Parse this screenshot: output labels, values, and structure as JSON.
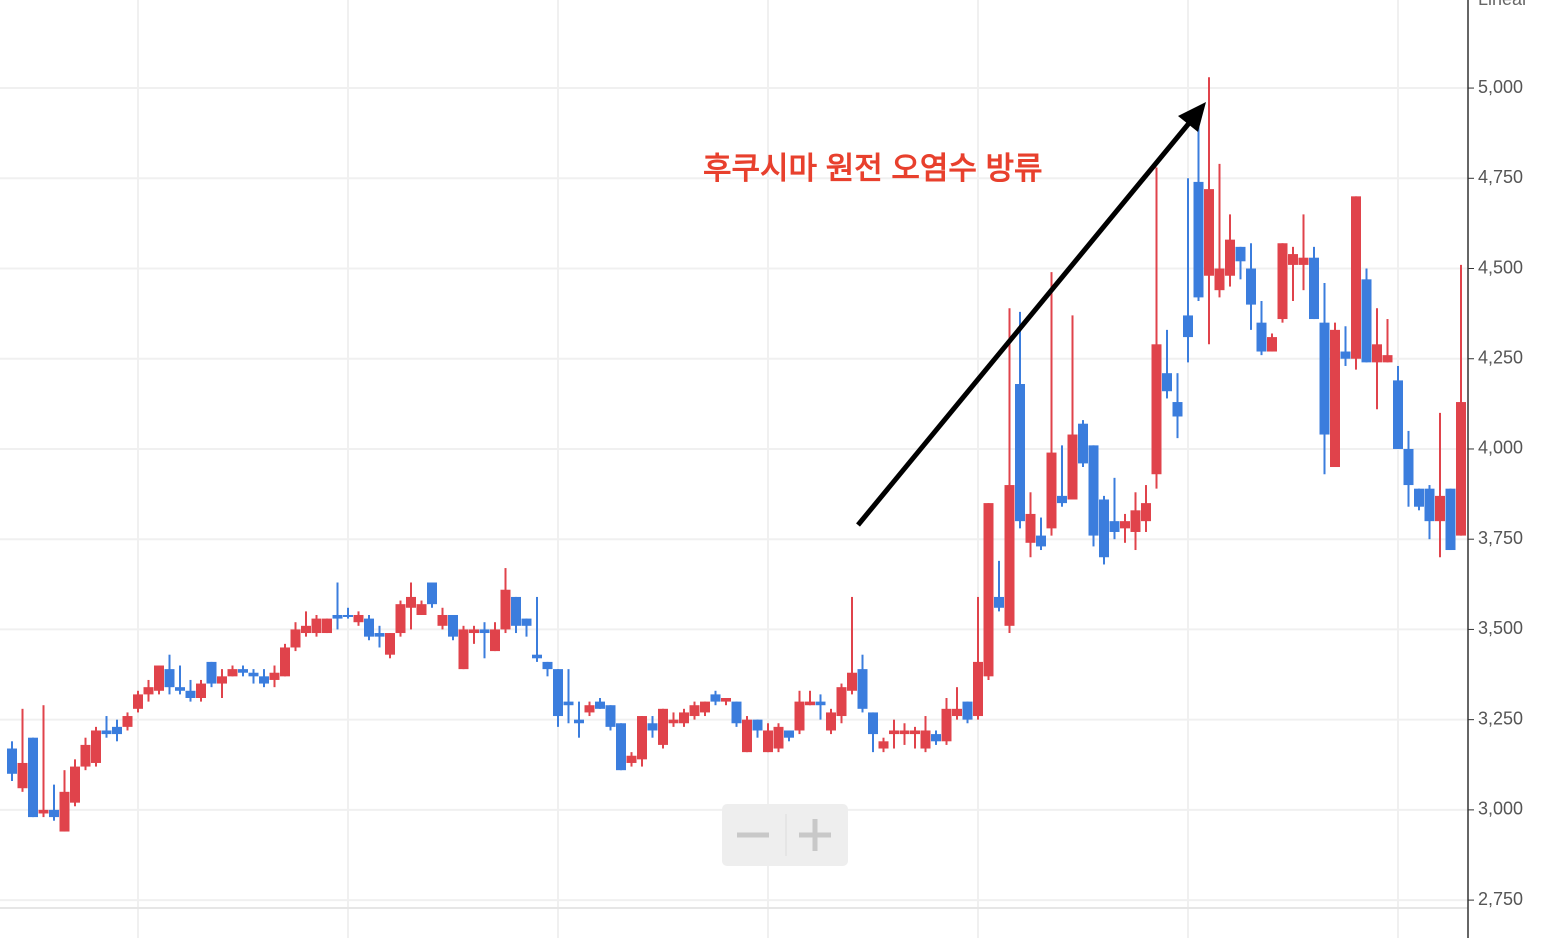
{
  "chart_data": {
    "type": "candlestick",
    "annotation": "후쿠시마 원전 오염수 방류",
    "scale": "Linear",
    "up_color": "#e0434b",
    "down_color": "#3b7ddd",
    "annotation_color": "#e8402d",
    "grid": true,
    "ylim": [
      2645,
      5244
    ],
    "yticks": [
      {
        "value": 2750,
        "label": "2,750"
      },
      {
        "value": 3000,
        "label": "3,000"
      },
      {
        "value": 3250,
        "label": "3,250"
      },
      {
        "value": 3500,
        "label": "3,500"
      },
      {
        "value": 3750,
        "label": "3,750"
      },
      {
        "value": 4000,
        "label": "4,000"
      },
      {
        "value": 4250,
        "label": "4,250"
      },
      {
        "value": 4500,
        "label": "4,500"
      },
      {
        "value": 4750,
        "label": "4,750"
      },
      {
        "value": 5000,
        "label": "5,000"
      }
    ],
    "candles": [
      {
        "open": 3170,
        "high": 3190,
        "low": 3080,
        "close": 3100
      },
      {
        "open": 3060,
        "high": 3280,
        "low": 3050,
        "close": 3130
      },
      {
        "open": 3200,
        "high": 3200,
        "low": 2980,
        "close": 2980
      },
      {
        "open": 2990,
        "high": 3290,
        "low": 2980,
        "close": 3000
      },
      {
        "open": 3000,
        "high": 3070,
        "low": 2970,
        "close": 2980
      },
      {
        "open": 2940,
        "high": 3110,
        "low": 2940,
        "close": 3050
      },
      {
        "open": 3020,
        "high": 3140,
        "low": 3010,
        "close": 3120
      },
      {
        "open": 3120,
        "high": 3200,
        "low": 3110,
        "close": 3180
      },
      {
        "open": 3130,
        "high": 3230,
        "low": 3120,
        "close": 3220
      },
      {
        "open": 3220,
        "high": 3260,
        "low": 3200,
        "close": 3210
      },
      {
        "open": 3230,
        "high": 3250,
        "low": 3190,
        "close": 3210
      },
      {
        "open": 3230,
        "high": 3270,
        "low": 3220,
        "close": 3260
      },
      {
        "open": 3280,
        "high": 3330,
        "low": 3270,
        "close": 3320
      },
      {
        "open": 3320,
        "high": 3360,
        "low": 3300,
        "close": 3340
      },
      {
        "open": 3330,
        "high": 3400,
        "low": 3320,
        "close": 3400
      },
      {
        "open": 3390,
        "high": 3430,
        "low": 3320,
        "close": 3340
      },
      {
        "open": 3340,
        "high": 3400,
        "low": 3320,
        "close": 3330
      },
      {
        "open": 3330,
        "high": 3360,
        "low": 3300,
        "close": 3310
      },
      {
        "open": 3310,
        "high": 3360,
        "low": 3300,
        "close": 3350
      },
      {
        "open": 3410,
        "high": 3410,
        "low": 3340,
        "close": 3350
      },
      {
        "open": 3350,
        "high": 3390,
        "low": 3310,
        "close": 3370
      },
      {
        "open": 3370,
        "high": 3400,
        "low": 3370,
        "close": 3390
      },
      {
        "open": 3390,
        "high": 3400,
        "low": 3370,
        "close": 3380
      },
      {
        "open": 3380,
        "high": 3390,
        "low": 3350,
        "close": 3370
      },
      {
        "open": 3370,
        "high": 3390,
        "low": 3340,
        "close": 3350
      },
      {
        "open": 3360,
        "high": 3400,
        "low": 3340,
        "close": 3380
      },
      {
        "open": 3370,
        "high": 3460,
        "low": 3370,
        "close": 3450
      },
      {
        "open": 3450,
        "high": 3520,
        "low": 3440,
        "close": 3500
      },
      {
        "open": 3490,
        "high": 3550,
        "low": 3480,
        "close": 3510
      },
      {
        "open": 3490,
        "high": 3540,
        "low": 3480,
        "close": 3530
      },
      {
        "open": 3490,
        "high": 3530,
        "low": 3490,
        "close": 3530
      },
      {
        "open": 3540,
        "high": 3630,
        "low": 3500,
        "close": 3530
      },
      {
        "open": 3540,
        "high": 3560,
        "low": 3530,
        "close": 3535
      },
      {
        "open": 3520,
        "high": 3550,
        "low": 3510,
        "close": 3540
      },
      {
        "open": 3530,
        "high": 3540,
        "low": 3470,
        "close": 3480
      },
      {
        "open": 3490,
        "high": 3510,
        "low": 3450,
        "close": 3480
      },
      {
        "open": 3430,
        "high": 3490,
        "low": 3420,
        "close": 3490
      },
      {
        "open": 3490,
        "high": 3580,
        "low": 3480,
        "close": 3570
      },
      {
        "open": 3560,
        "high": 3630,
        "low": 3500,
        "close": 3590
      },
      {
        "open": 3540,
        "high": 3580,
        "low": 3540,
        "close": 3570
      },
      {
        "open": 3630,
        "high": 3630,
        "low": 3560,
        "close": 3570
      },
      {
        "open": 3510,
        "high": 3560,
        "low": 3500,
        "close": 3540
      },
      {
        "open": 3540,
        "high": 3540,
        "low": 3470,
        "close": 3480
      },
      {
        "open": 3390,
        "high": 3510,
        "low": 3390,
        "close": 3500
      },
      {
        "open": 3490,
        "high": 3510,
        "low": 3460,
        "close": 3500
      },
      {
        "open": 3500,
        "high": 3520,
        "low": 3420,
        "close": 3490
      },
      {
        "open": 3440,
        "high": 3520,
        "low": 3440,
        "close": 3500
      },
      {
        "open": 3500,
        "high": 3670,
        "low": 3490,
        "close": 3610
      },
      {
        "open": 3590,
        "high": 3590,
        "low": 3490,
        "close": 3510
      },
      {
        "open": 3530,
        "high": 3530,
        "low": 3480,
        "close": 3510
      },
      {
        "open": 3430,
        "high": 3590,
        "low": 3410,
        "close": 3420
      },
      {
        "open": 3410,
        "high": 3410,
        "low": 3370,
        "close": 3390
      },
      {
        "open": 3390,
        "high": 3390,
        "low": 3230,
        "close": 3260
      },
      {
        "open": 3300,
        "high": 3390,
        "low": 3240,
        "close": 3290
      },
      {
        "open": 3250,
        "high": 3300,
        "low": 3200,
        "close": 3240
      },
      {
        "open": 3270,
        "high": 3300,
        "low": 3260,
        "close": 3290
      },
      {
        "open": 3300,
        "high": 3310,
        "low": 3280,
        "close": 3280
      },
      {
        "open": 3290,
        "high": 3290,
        "low": 3220,
        "close": 3230
      },
      {
        "open": 3240,
        "high": 3240,
        "low": 3110,
        "close": 3110
      },
      {
        "open": 3130,
        "high": 3160,
        "low": 3120,
        "close": 3150
      },
      {
        "open": 3140,
        "high": 3260,
        "low": 3120,
        "close": 3260
      },
      {
        "open": 3240,
        "high": 3260,
        "low": 3200,
        "close": 3220
      },
      {
        "open": 3180,
        "high": 3280,
        "low": 3170,
        "close": 3280
      },
      {
        "open": 3240,
        "high": 3270,
        "low": 3230,
        "close": 3250
      },
      {
        "open": 3240,
        "high": 3280,
        "low": 3230,
        "close": 3270
      },
      {
        "open": 3260,
        "high": 3300,
        "low": 3250,
        "close": 3290
      },
      {
        "open": 3270,
        "high": 3300,
        "low": 3260,
        "close": 3300
      },
      {
        "open": 3320,
        "high": 3330,
        "low": 3290,
        "close": 3300
      },
      {
        "open": 3300,
        "high": 3310,
        "low": 3290,
        "close": 3310
      },
      {
        "open": 3300,
        "high": 3300,
        "low": 3230,
        "close": 3240
      },
      {
        "open": 3160,
        "high": 3260,
        "low": 3160,
        "close": 3250
      },
      {
        "open": 3250,
        "high": 3250,
        "low": 3200,
        "close": 3220
      },
      {
        "open": 3160,
        "high": 3240,
        "low": 3160,
        "close": 3220
      },
      {
        "open": 3170,
        "high": 3240,
        "low": 3160,
        "close": 3230
      },
      {
        "open": 3220,
        "high": 3220,
        "low": 3190,
        "close": 3200
      },
      {
        "open": 3220,
        "high": 3330,
        "low": 3210,
        "close": 3300
      },
      {
        "open": 3290,
        "high": 3330,
        "low": 3290,
        "close": 3300
      },
      {
        "open": 3300,
        "high": 3320,
        "low": 3250,
        "close": 3290
      },
      {
        "open": 3220,
        "high": 3280,
        "low": 3210,
        "close": 3270
      },
      {
        "open": 3260,
        "high": 3350,
        "low": 3240,
        "close": 3340
      },
      {
        "open": 3330,
        "high": 3590,
        "low": 3320,
        "close": 3380
      },
      {
        "open": 3390,
        "high": 3430,
        "low": 3270,
        "close": 3280
      },
      {
        "open": 3270,
        "high": 3270,
        "low": 3160,
        "close": 3210
      },
      {
        "open": 3170,
        "high": 3200,
        "low": 3160,
        "close": 3190
      },
      {
        "open": 3210,
        "high": 3250,
        "low": 3170,
        "close": 3220
      },
      {
        "open": 3210,
        "high": 3240,
        "low": 3180,
        "close": 3220
      },
      {
        "open": 3210,
        "high": 3230,
        "low": 3170,
        "close": 3220
      },
      {
        "open": 3170,
        "high": 3260,
        "low": 3160,
        "close": 3220
      },
      {
        "open": 3210,
        "high": 3220,
        "low": 3180,
        "close": 3190
      },
      {
        "open": 3190,
        "high": 3310,
        "low": 3180,
        "close": 3280
      },
      {
        "open": 3260,
        "high": 3340,
        "low": 3250,
        "close": 3280
      },
      {
        "open": 3300,
        "high": 3300,
        "low": 3240,
        "close": 3250
      },
      {
        "open": 3260,
        "high": 3590,
        "low": 3250,
        "close": 3410
      },
      {
        "open": 3370,
        "high": 3850,
        "low": 3360,
        "close": 3850
      },
      {
        "open": 3590,
        "high": 3690,
        "low": 3550,
        "close": 3560
      },
      {
        "open": 3510,
        "high": 4390,
        "low": 3490,
        "close": 3900
      },
      {
        "open": 4180,
        "high": 4380,
        "low": 3780,
        "close": 3800
      },
      {
        "open": 3740,
        "high": 3880,
        "low": 3700,
        "close": 3820
      },
      {
        "open": 3760,
        "high": 3810,
        "low": 3720,
        "close": 3730
      },
      {
        "open": 3780,
        "high": 4490,
        "low": 3760,
        "close": 3990
      },
      {
        "open": 3870,
        "high": 4010,
        "low": 3840,
        "close": 3850
      },
      {
        "open": 3860,
        "high": 4370,
        "low": 3860,
        "close": 4040
      },
      {
        "open": 4070,
        "high": 4080,
        "low": 3950,
        "close": 3960
      },
      {
        "open": 4010,
        "high": 4010,
        "low": 3730,
        "close": 3760
      },
      {
        "open": 3860,
        "high": 3870,
        "low": 3680,
        "close": 3700
      },
      {
        "open": 3800,
        "high": 3920,
        "low": 3750,
        "close": 3770
      },
      {
        "open": 3780,
        "high": 3820,
        "low": 3740,
        "close": 3800
      },
      {
        "open": 3770,
        "high": 3880,
        "low": 3720,
        "close": 3830
      },
      {
        "open": 3800,
        "high": 3900,
        "low": 3770,
        "close": 3850
      },
      {
        "open": 3930,
        "high": 4780,
        "low": 3890,
        "close": 4290
      },
      {
        "open": 4210,
        "high": 4330,
        "low": 4140,
        "close": 4160
      },
      {
        "open": 4130,
        "high": 4210,
        "low": 4030,
        "close": 4090
      },
      {
        "open": 4370,
        "high": 4750,
        "low": 4240,
        "close": 4310
      },
      {
        "open": 4740,
        "high": 4930,
        "low": 4410,
        "close": 4420
      },
      {
        "open": 4480,
        "high": 5030,
        "low": 4290,
        "close": 4720
      },
      {
        "open": 4440,
        "high": 4790,
        "low": 4420,
        "close": 4500
      },
      {
        "open": 4480,
        "high": 4650,
        "low": 4450,
        "close": 4580
      },
      {
        "open": 4560,
        "high": 4560,
        "low": 4470,
        "close": 4520
      },
      {
        "open": 4500,
        "high": 4570,
        "low": 4330,
        "close": 4400
      },
      {
        "open": 4350,
        "high": 4410,
        "low": 4260,
        "close": 4270
      },
      {
        "open": 4270,
        "high": 4320,
        "low": 4270,
        "close": 4310
      },
      {
        "open": 4360,
        "high": 4570,
        "low": 4350,
        "close": 4570
      },
      {
        "open": 4510,
        "high": 4560,
        "low": 4410,
        "close": 4540
      },
      {
        "open": 4510,
        "high": 4650,
        "low": 4440,
        "close": 4530
      },
      {
        "open": 4530,
        "high": 4560,
        "low": 4360,
        "close": 4360
      },
      {
        "open": 4350,
        "high": 4460,
        "low": 3930,
        "close": 4040
      },
      {
        "open": 3950,
        "high": 4350,
        "low": 3950,
        "close": 4330
      },
      {
        "open": 4270,
        "high": 4340,
        "low": 4230,
        "close": 4250
      },
      {
        "open": 4250,
        "high": 4700,
        "low": 4220,
        "close": 4700
      },
      {
        "open": 4470,
        "high": 4500,
        "low": 4240,
        "close": 4240
      },
      {
        "open": 4240,
        "high": 4390,
        "low": 4110,
        "close": 4290
      },
      {
        "open": 4240,
        "high": 4360,
        "low": 4240,
        "close": 4260
      },
      {
        "open": 4190,
        "high": 4230,
        "low": 4000,
        "close": 4000
      },
      {
        "open": 4000,
        "high": 4050,
        "low": 3840,
        "close": 3900
      },
      {
        "open": 3890,
        "high": 3890,
        "low": 3830,
        "close": 3840
      },
      {
        "open": 3890,
        "high": 3900,
        "low": 3750,
        "close": 3800
      },
      {
        "open": 3800,
        "high": 4100,
        "low": 3700,
        "close": 3870
      },
      {
        "open": 3890,
        "high": 3890,
        "low": 3720,
        "close": 3720
      },
      {
        "open": 3760,
        "high": 4510,
        "low": 3760,
        "close": 4130
      }
    ]
  }
}
